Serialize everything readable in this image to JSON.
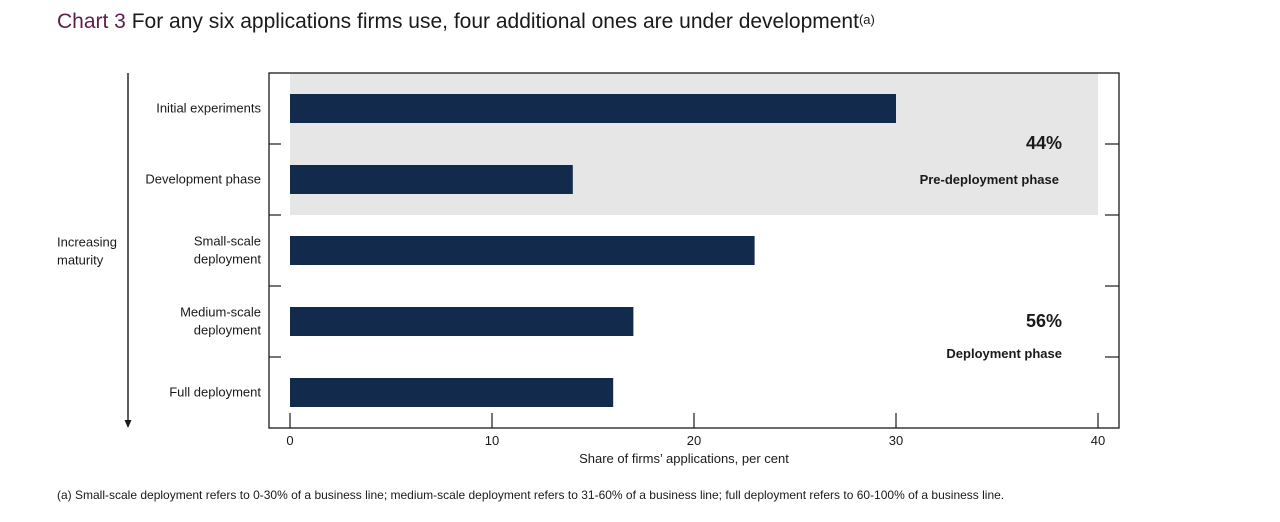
{
  "title": {
    "number": "Chart 3",
    "text": "For any six applications firms use, four additional ones are under development",
    "superscript": "(a)"
  },
  "footnote": "(a)  Small-scale deployment refers to 0-30% of a business line; medium-scale deployment refers to 31-60% of a business line; full deployment refers to 60-100% of a business line.",
  "chart_data": {
    "type": "bar",
    "orientation": "horizontal",
    "categories": [
      "Initial experiments",
      "Development phase",
      "Small-scale deployment",
      "Medium-scale deployment",
      "Full deployment"
    ],
    "category_label_lines": [
      [
        "Initial experiments"
      ],
      [
        "Development phase"
      ],
      [
        "Small-scale",
        "deployment"
      ],
      [
        "Medium-scale",
        "deployment"
      ],
      [
        "Full deployment"
      ]
    ],
    "values": [
      30,
      14,
      23,
      17,
      16
    ],
    "xlabel": "Share of firms’ applications, per cent",
    "xlim": [
      0,
      40
    ],
    "xticks": [
      "0",
      "10",
      "20",
      "30",
      "40"
    ],
    "ylabel_lines": [
      "Increasing",
      "maturity"
    ],
    "grid": false,
    "bar_color": "#122a4c",
    "shade_color": "#e6e6e6",
    "annotations": [
      {
        "value": "44%",
        "label": "Pre-deployment phase",
        "covers": [
          "Initial experiments",
          "Development phase"
        ],
        "shaded": true
      },
      {
        "value": "56%",
        "label": "Deployment phase",
        "covers": [
          "Small-scale deployment",
          "Medium-scale deployment",
          "Full deployment"
        ],
        "shaded": false
      }
    ]
  }
}
